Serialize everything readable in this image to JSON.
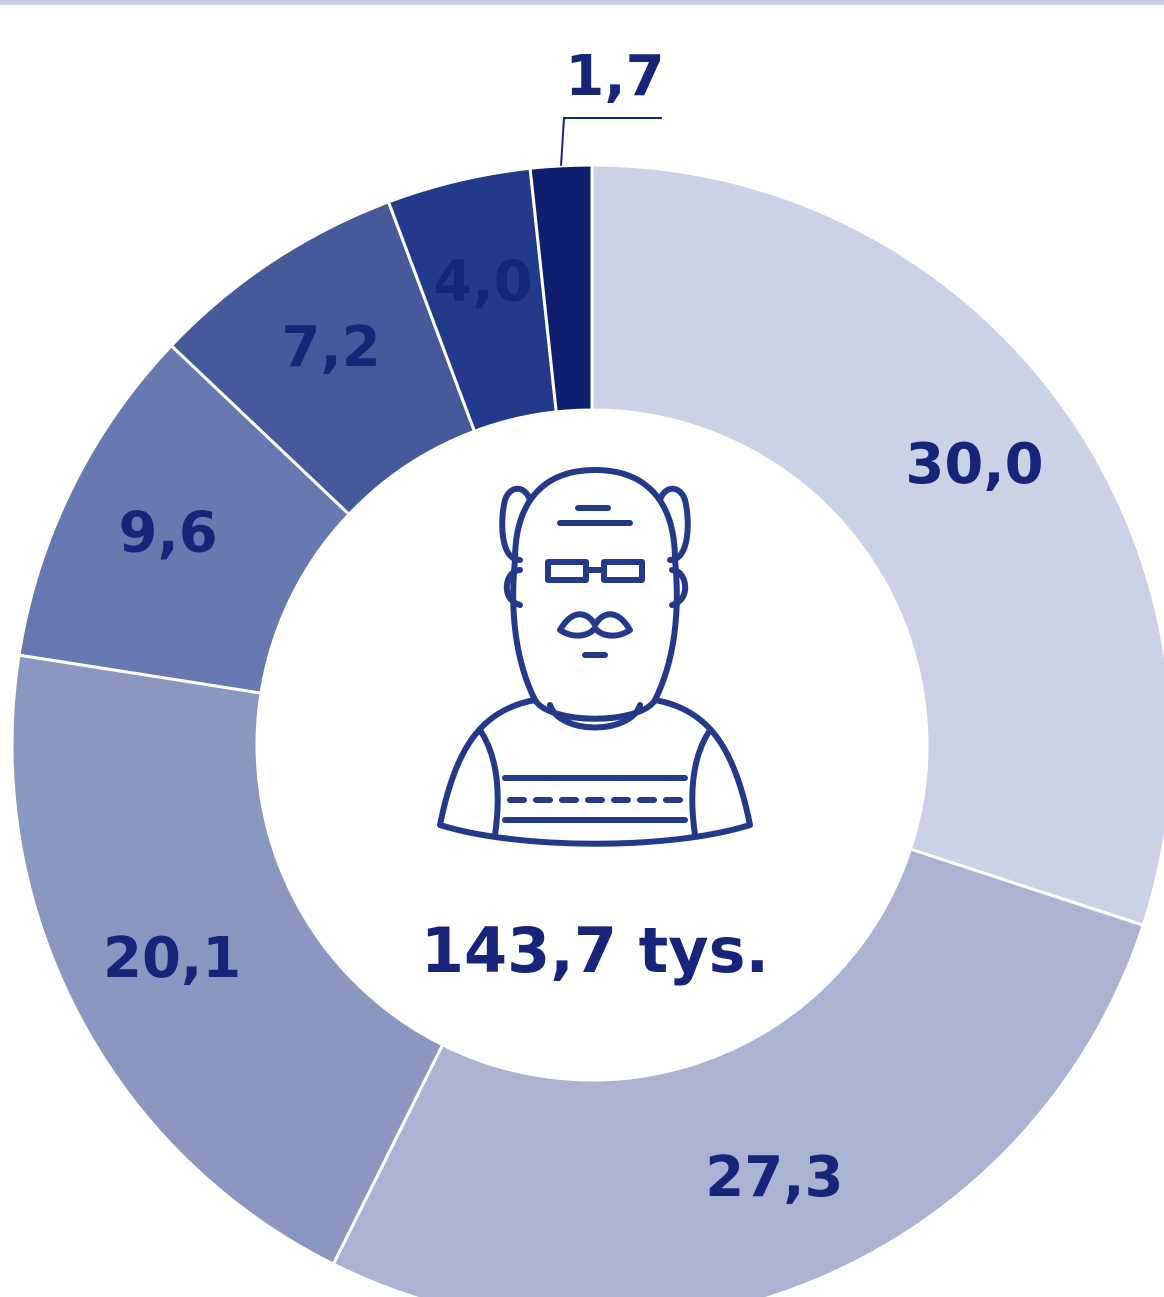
{
  "chart_data": {
    "type": "donut",
    "center_label": "143,7 tys.",
    "values": [
      30.0,
      27.3,
      20.1,
      9.6,
      7.2,
      4.0,
      1.7
    ],
    "value_labels": [
      "30,0",
      "27,3",
      "20,1",
      "9,6",
      "7,2",
      "4,0",
      "1,7"
    ],
    "colors": [
      "#ccd2e5",
      "#aab3d2",
      "#8a97c0",
      "#6878b0",
      "#45599b",
      "#233a8a",
      "#0e1f70"
    ]
  }
}
